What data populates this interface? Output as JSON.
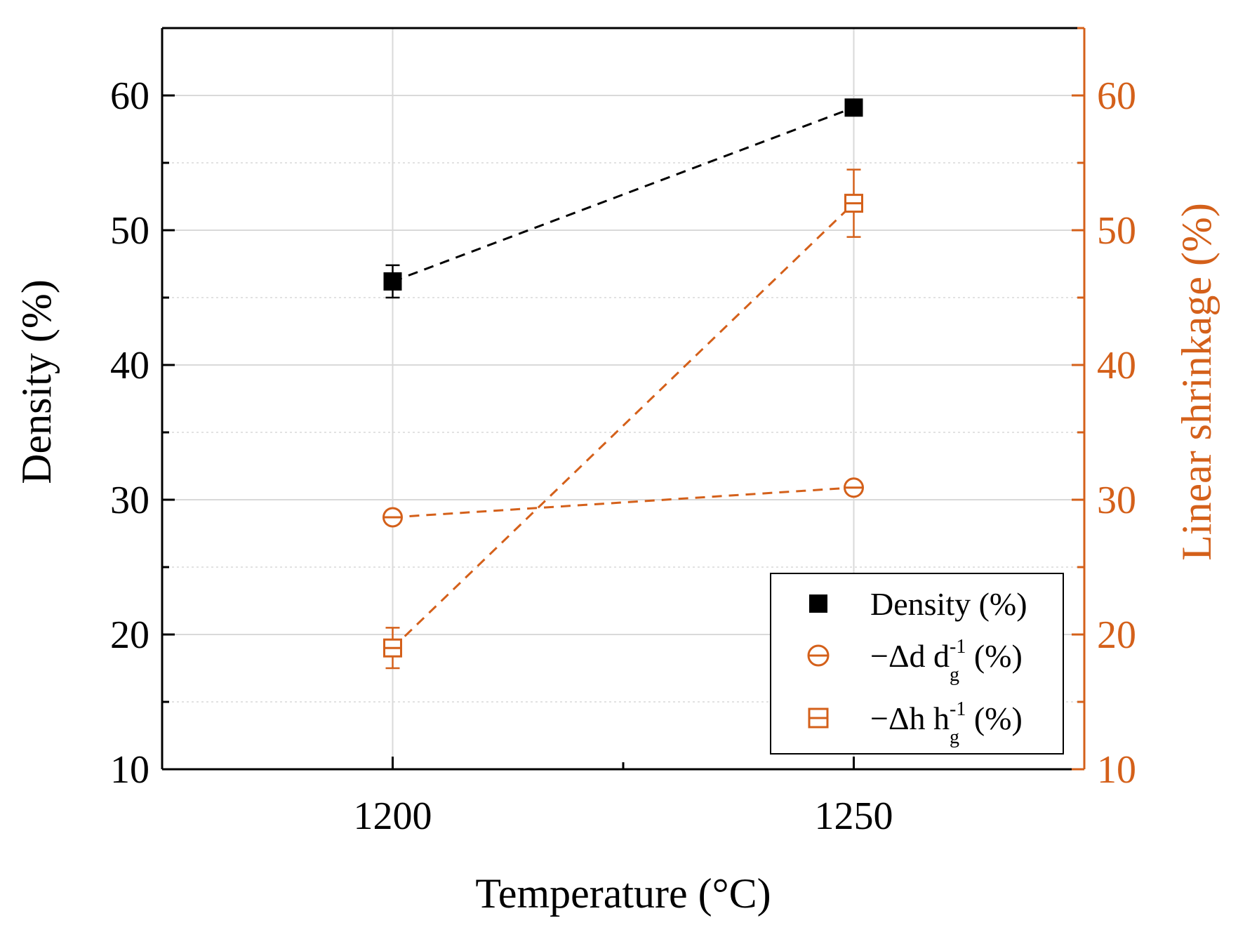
{
  "chart_data": {
    "type": "line",
    "xlabel": "Temperature (°C)",
    "ylabel_left": "Density (%)",
    "ylabel_right": "Linear shrinkage (%)",
    "x_categories": [
      "1200",
      "1250"
    ],
    "x_values": [
      1200,
      1250
    ],
    "xlim": [
      1175,
      1275
    ],
    "ylim_left": [
      10,
      65
    ],
    "ylim_right": [
      10,
      65
    ],
    "yticks": [
      "10",
      "20",
      "30",
      "40",
      "50",
      "60"
    ],
    "grid": true,
    "legend_position": "bottom-right",
    "colors": {
      "density": "#000000",
      "shrinkage": "#d4601a",
      "grid": "#d9d9d9"
    },
    "series": [
      {
        "name": "Density (%)",
        "axis": "left",
        "marker": "filled-square",
        "color": "#000000",
        "values": [
          46.2,
          59.1
        ],
        "errors": [
          1.2,
          0.6
        ]
      },
      {
        "name": "−Δd d_g^-1 (%)",
        "axis": "right",
        "marker": "circle-bar",
        "color": "#d4601a",
        "values": [
          28.7,
          30.9
        ],
        "errors": [
          0.5,
          0.4
        ]
      },
      {
        "name": "−Δh h_g^-1 (%)",
        "axis": "right",
        "marker": "square-bar",
        "color": "#d4601a",
        "values": [
          19.0,
          52.0
        ],
        "errors": [
          1.5,
          2.5
        ]
      }
    ],
    "legend": [
      {
        "main": "Density (%)"
      },
      {
        "prefix": "−Δd d",
        "sub": "g",
        "sup": "-1",
        "suffix": " (%)"
      },
      {
        "prefix": "−Δh h",
        "sub": "g",
        "sup": "-1",
        "suffix": " (%)"
      }
    ]
  }
}
